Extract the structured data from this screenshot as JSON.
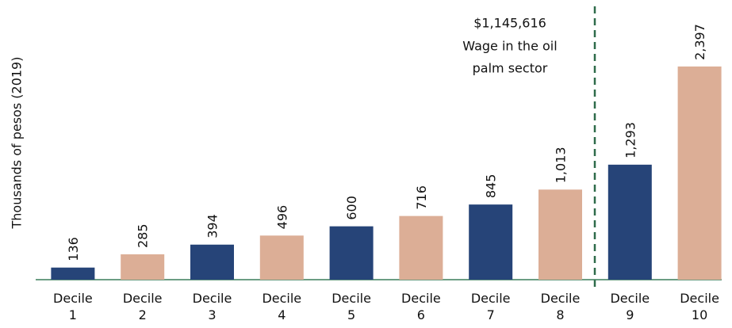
{
  "chart_data": {
    "type": "bar",
    "y_label": "Thousands of pesos (2019)",
    "categories": [
      "Decile 1",
      "Decile 2",
      "Decile 3",
      "Decile 4",
      "Decile 5",
      "Decile 6",
      "Decile 7",
      "Decile 8",
      "Decile 9",
      "Decile 10"
    ],
    "values": [
      136,
      285,
      394,
      496,
      600,
      716,
      845,
      1013,
      1293,
      2397
    ],
    "value_labels": [
      "136",
      "285",
      "394",
      "496",
      "600",
      "716",
      "845",
      "1,013",
      "1,293",
      "2,397"
    ],
    "colors": [
      "#264478",
      "#dcae96",
      "#264478",
      "#dcae96",
      "#264478",
      "#dcae96",
      "#264478",
      "#dcae96",
      "#264478",
      "#dcae96"
    ],
    "ylim": [
      0,
      3100
    ],
    "annotation": [
      "$1,145,616",
      "Wage in the oil",
      "palm sector"
    ]
  }
}
